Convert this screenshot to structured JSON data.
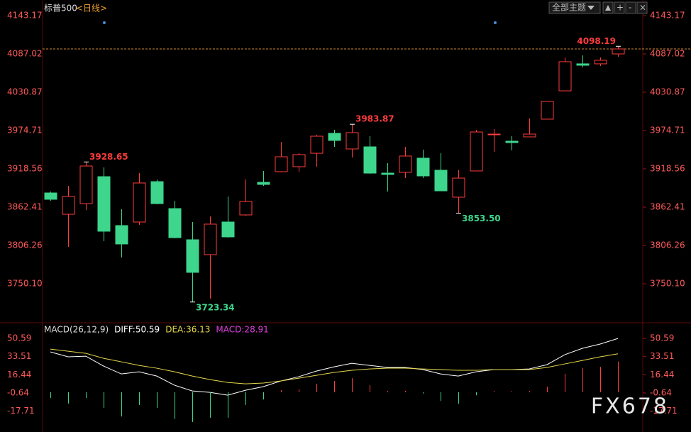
{
  "header": {
    "symbol": "标普500",
    "period": "<日线>",
    "theme_button": "全部主题"
  },
  "watermark": "FX678",
  "chart_data": [
    {
      "type": "candlestick",
      "up_color": "#ff3c3c",
      "down_color": "#3dd68c",
      "last_line_color": "#d08a30",
      "open": [
        3883.2,
        3852.0,
        3867.6,
        3907.1,
        3835.4,
        3840.6,
        3899.8,
        3860.3,
        3814.6,
        3792.8,
        3840.6,
        3851.0,
        3898.8,
        3914.4,
        3921.7,
        3941.4,
        3970.6,
        3947.7,
        3950.8,
        3912.3,
        3913.4,
        3934.2,
        3916.5,
        3877.0,
        3915.5,
        3968.5,
        3959.1,
        3965.4,
        3991.4,
        4032.9,
        4072.5,
        4072.5,
        4087.0
      ],
      "high": [
        3885.3,
        3893.6,
        3928.65,
        3920.6,
        3859.3,
        3912.3,
        3902.9,
        3871.8,
        3840.6,
        3848.9,
        3878.0,
        3903.0,
        3915.5,
        3958.1,
        3941.4,
        3968.5,
        3975.8,
        3983.87,
        3966.4,
        3926.9,
        3950.8,
        3946.7,
        3941.4,
        3916.5,
        3975.8,
        3976.8,
        3966.4,
        3992.4,
        4017.4,
        4081.8,
        4084.9,
        4081.8,
        4098.19
      ],
      "low": [
        3871.8,
        3804.2,
        3858.3,
        3812.5,
        3788.6,
        3836.4,
        3866.6,
        3816.7,
        3723.34,
        3728.3,
        3817.7,
        3849.9,
        3893.6,
        3913.4,
        3914.4,
        3921.7,
        3950.8,
        3935.2,
        3911.3,
        3885.3,
        3905.0,
        3905.0,
        3886.3,
        3853.5,
        3915.5,
        3943.5,
        3945.6,
        3965.4,
        3991.4,
        4032.9,
        4067.3,
        4069.3,
        4082.9
      ],
      "close": [
        3873.9,
        3878.0,
        3922.7,
        3827.1,
        3808.4,
        3897.8,
        3867.6,
        3817.7,
        3766.8,
        3837.5,
        3818.8,
        3870.7,
        3895.7,
        3936.2,
        3939.4,
        3966.4,
        3960.2,
        3971.6,
        3912.3,
        3910.3,
        3937.3,
        3908.2,
        3886.3,
        3905.0,
        3972.6,
        3969.5,
        3957.0,
        3969.5,
        4017.4,
        4075.6,
        4070.4,
        4077.7,
        4094.3
      ],
      "high_labels": [
        null,
        null,
        "3928.65",
        null,
        null,
        null,
        null,
        null,
        null,
        null,
        null,
        null,
        null,
        null,
        null,
        null,
        null,
        "3983.87",
        null,
        null,
        null,
        null,
        null,
        null,
        null,
        null,
        null,
        null,
        null,
        null,
        null,
        null,
        "4098.19"
      ],
      "low_labels": [
        null,
        null,
        null,
        null,
        null,
        null,
        null,
        null,
        "3723.34",
        null,
        null,
        null,
        null,
        null,
        null,
        null,
        null,
        null,
        null,
        null,
        null,
        null,
        null,
        "3853.50",
        null,
        null,
        null,
        null,
        null,
        null,
        null,
        null,
        null
      ],
      "ylim": [
        3696.05,
        4160.85
      ],
      "yticks": [
        4143.17,
        4087.02,
        4030.87,
        3974.71,
        3918.56,
        3862.41,
        3806.26,
        {
          "value": 3750.1,
          "label": "3750.10"
        }
      ]
    },
    {
      "type": "line",
      "legend": [
        {
          "text": "MACD(26,12,9)",
          "color": "#dddddd"
        },
        {
          "text": "DIFF:50.59",
          "color": "#ffffff"
        },
        {
          "text": "DEA:36.13",
          "color": "#e6d84a"
        },
        {
          "text": "MACD:28.91",
          "color": "#e040e0"
        }
      ],
      "series": [
        {
          "style": "line",
          "color": "#ffffff",
          "values": [
            37.9,
            33.3,
            33.9,
            24.6,
            17.2,
            19.2,
            15.2,
            6.6,
            1.2,
            -0.1,
            -2.8,
            1.9,
            5.2,
            10.6,
            14.6,
            19.9,
            23.9,
            27.2,
            25.2,
            23.3,
            23.3,
            21.3,
            17.2,
            15.2,
            19.2,
            21.3,
            21.3,
            21.9,
            25.9,
            35.3,
            41.3,
            45.3,
            50.59
          ]
        },
        {
          "style": "line",
          "color": "#e6d84a",
          "values": [
            40.6,
            38.6,
            36.6,
            31.9,
            28.6,
            25.2,
            22.6,
            19.2,
            15.2,
            11.9,
            9.2,
            7.9,
            8.6,
            10.6,
            13.2,
            15.9,
            18.6,
            20.6,
            21.9,
            22.6,
            22.6,
            21.9,
            21.3,
            20.6,
            20.6,
            21.3,
            21.3,
            21.3,
            23.3,
            26.6,
            29.9,
            33.3,
            36.13
          ]
        },
        {
          "style": "bar",
          "up_color": "#ff3c3c",
          "down_color": "#3dd68c",
          "values": [
            -5.4,
            -10.6,
            -5.4,
            -14.6,
            -22.8,
            -12.0,
            -14.8,
            -25.2,
            -28.0,
            -24.0,
            -24.0,
            -12.0,
            -6.8,
            2.0,
            2.8,
            8.0,
            10.6,
            13.2,
            6.6,
            1.4,
            1.4,
            -1.2,
            -8.2,
            -10.8,
            -2.8,
            1.0,
            1.0,
            1.2,
            5.2,
            17.4,
            22.8,
            24.0,
            28.91
          ]
        }
      ],
      "ylim": [
        -35.4,
        62.0
      ],
      "yticks": [
        50.59,
        33.51,
        16.44,
        -0.64,
        -17.71
      ]
    }
  ]
}
